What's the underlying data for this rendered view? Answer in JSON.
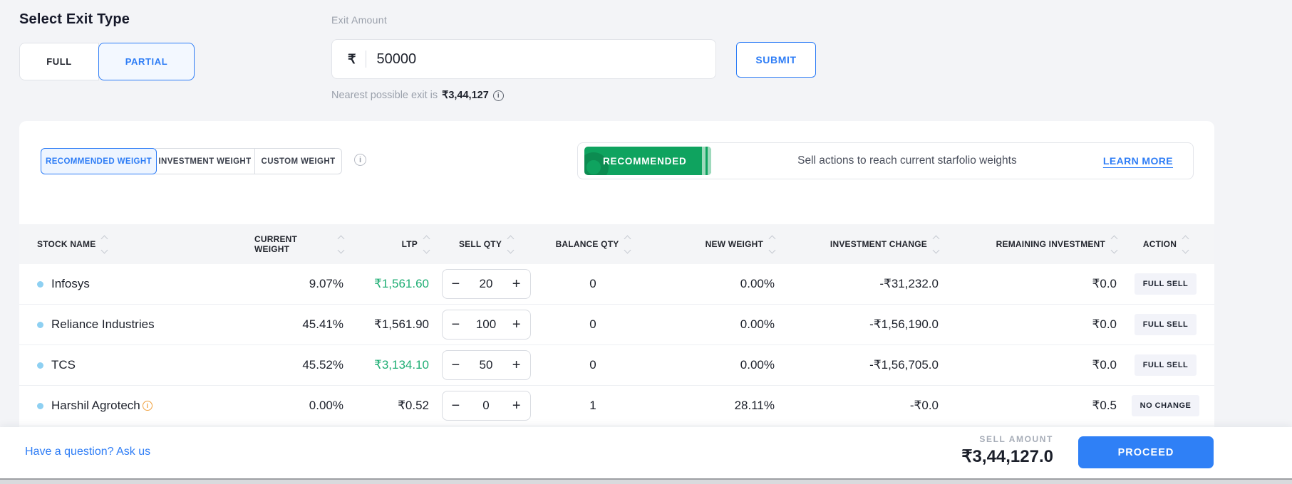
{
  "exit_type": {
    "heading": "Select Exit Type",
    "options": [
      {
        "label": "FULL",
        "selected": false
      },
      {
        "label": "PARTIAL",
        "selected": true
      }
    ]
  },
  "exit_amount": {
    "label": "Exit Amount",
    "currency": "₹",
    "value": "50000",
    "helper_prefix": "Nearest possible exit is",
    "helper_amount": "₹3,44,127"
  },
  "submit_label": "SUBMIT",
  "weight_tabs": [
    {
      "label": "RECOMMENDED WEIGHT",
      "selected": true
    },
    {
      "label": "INVESTMENT WEIGHT",
      "selected": false
    },
    {
      "label": "CUSTOM WEIGHT",
      "selected": false
    }
  ],
  "banner": {
    "badge": "RECOMMENDED",
    "message": "Sell actions to reach current starfolio weights",
    "link": "LEARN MORE",
    "badge_color": "#0fa35f"
  },
  "table": {
    "columns": [
      "STOCK NAME",
      "CURRENT WEIGHT",
      "LTP",
      "SELL QTY",
      "BALANCE QTY",
      "NEW WEIGHT",
      "INVESTMENT CHANGE",
      "REMAINING INVESTMENT",
      "ACTION"
    ],
    "rows": [
      {
        "name": "Infosys",
        "warning": false,
        "current_weight": "9.07%",
        "ltp": "₹1,561.60",
        "ltp_green": true,
        "sell_qty": "20",
        "balance_qty": "0",
        "new_weight": "0.00%",
        "investment_change": "-₹31,232.0",
        "remaining_investment": "₹0.0",
        "action": "FULL SELL"
      },
      {
        "name": "Reliance Industries",
        "warning": false,
        "current_weight": "45.41%",
        "ltp": "₹1,561.90",
        "ltp_green": false,
        "sell_qty": "100",
        "balance_qty": "0",
        "new_weight": "0.00%",
        "investment_change": "-₹1,56,190.0",
        "remaining_investment": "₹0.0",
        "action": "FULL SELL"
      },
      {
        "name": "TCS",
        "warning": false,
        "current_weight": "45.52%",
        "ltp": "₹3,134.10",
        "ltp_green": true,
        "sell_qty": "50",
        "balance_qty": "0",
        "new_weight": "0.00%",
        "investment_change": "-₹1,56,705.0",
        "remaining_investment": "₹0.0",
        "action": "FULL SELL"
      },
      {
        "name": "Harshil Agrotech",
        "warning": true,
        "current_weight": "0.00%",
        "ltp": "₹0.52",
        "ltp_green": false,
        "sell_qty": "0",
        "balance_qty": "1",
        "new_weight": "28.11%",
        "investment_change": "-₹0.0",
        "remaining_investment": "₹0.5",
        "action": "NO CHANGE"
      }
    ]
  },
  "footer": {
    "question_link": "Have a question? Ask us",
    "sell_amount_label": "SELL AMOUNT",
    "sell_amount_value": "₹3,44,127.0",
    "proceed_label": "PROCEED"
  },
  "ui": {
    "minus": "−",
    "plus": "+",
    "info_glyph": "i",
    "warning_glyph": "i"
  },
  "colors": {
    "accent_blue": "#2e7df6",
    "green_ltp": "#1fae74",
    "badge_green": "#0fa35f",
    "page_bg": "#f3f4f7"
  }
}
